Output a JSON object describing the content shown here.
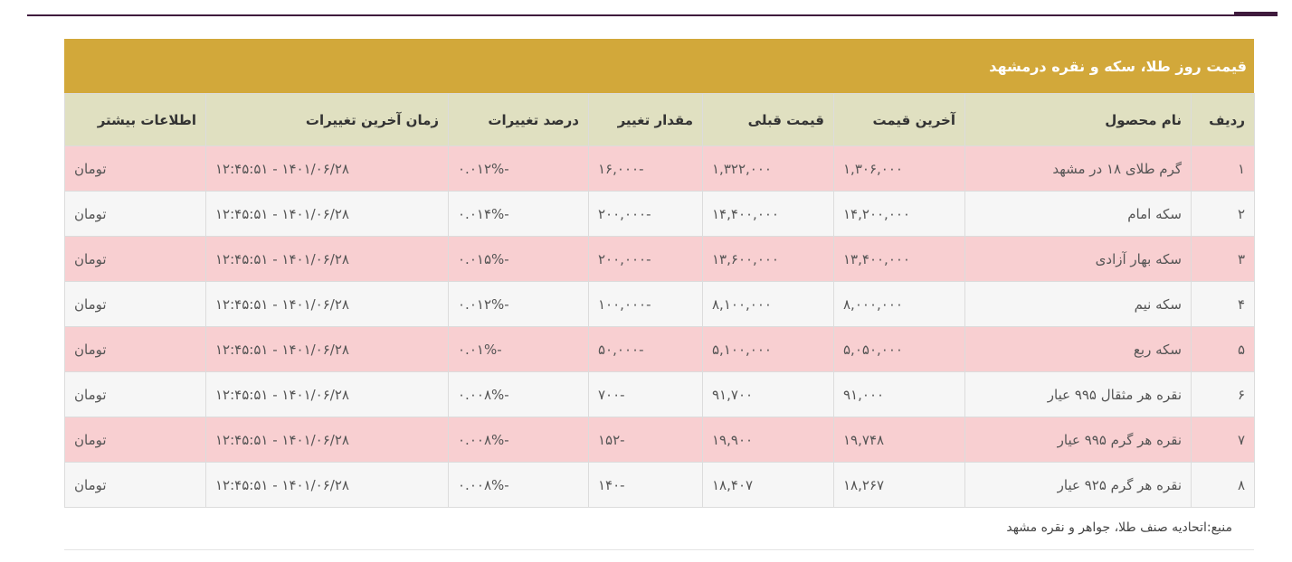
{
  "table": {
    "title": "قیمت روز طلا، سکه و نقره درمشهد",
    "headers": {
      "row": "ردیف",
      "product": "نام محصول",
      "last_price": "آخرین قیمت",
      "prev_price": "قیمت قبلی",
      "change": "مقدار تغییر",
      "change_pct": "درصد تغییرات",
      "last_update": "زمان آخرین تغییرات",
      "more_info": "اطلاعات بیشتر"
    },
    "rows": [
      {
        "idx": "۱",
        "product": "گرم طلای ۱۸ در مشهد",
        "last": "۱,۳۰۶,۰۰۰",
        "prev": "۱,۳۲۲,۰۰۰",
        "change": "-۱۶,۰۰۰",
        "pct": "-۰.۰۱۲%",
        "time": "۱۴۰۱/۰۶/۲۸ - ۱۲:۴۵:۵۱",
        "unit": "تومان"
      },
      {
        "idx": "۲",
        "product": "سکه امام",
        "last": "۱۴,۲۰۰,۰۰۰",
        "prev": "۱۴,۴۰۰,۰۰۰",
        "change": "-۲۰۰,۰۰۰",
        "pct": "-۰.۰۱۴%",
        "time": "۱۴۰۱/۰۶/۲۸ - ۱۲:۴۵:۵۱",
        "unit": "تومان"
      },
      {
        "idx": "۳",
        "product": "سکه بهار آزادی",
        "last": "۱۳,۴۰۰,۰۰۰",
        "prev": "۱۳,۶۰۰,۰۰۰",
        "change": "-۲۰۰,۰۰۰",
        "pct": "-۰.۰۱۵%",
        "time": "۱۴۰۱/۰۶/۲۸ - ۱۲:۴۵:۵۱",
        "unit": "تومان"
      },
      {
        "idx": "۴",
        "product": "سکه نیم",
        "last": "۸,۰۰۰,۰۰۰",
        "prev": "۸,۱۰۰,۰۰۰",
        "change": "-۱۰۰,۰۰۰",
        "pct": "-۰.۰۱۲%",
        "time": "۱۴۰۱/۰۶/۲۸ - ۱۲:۴۵:۵۱",
        "unit": "تومان"
      },
      {
        "idx": "۵",
        "product": "سکه ربع",
        "last": "۵,۰۵۰,۰۰۰",
        "prev": "۵,۱۰۰,۰۰۰",
        "change": "-۵۰,۰۰۰",
        "pct": "-۰.۰۱%",
        "time": "۱۴۰۱/۰۶/۲۸ - ۱۲:۴۵:۵۱",
        "unit": "تومان"
      },
      {
        "idx": "۶",
        "product": "نقره هر مثقال ۹۹۵ عیار",
        "last": "۹۱,۰۰۰",
        "prev": "۹۱,۷۰۰",
        "change": "-۷۰۰",
        "pct": "-۰.۰۰۸%",
        "time": "۱۴۰۱/۰۶/۲۸ - ۱۲:۴۵:۵۱",
        "unit": "تومان"
      },
      {
        "idx": "۷",
        "product": "نقره هر گرم ۹۹۵ عیار",
        "last": "۱۹,۷۴۸",
        "prev": "۱۹,۹۰۰",
        "change": "-۱۵۲",
        "pct": "-۰.۰۰۸%",
        "time": "۱۴۰۱/۰۶/۲۸ - ۱۲:۴۵:۵۱",
        "unit": "تومان"
      },
      {
        "idx": "۸",
        "product": "نقره هر گرم ۹۲۵ عیار",
        "last": "۱۸,۲۶۷",
        "prev": "۱۸,۴۰۷",
        "change": "-۱۴۰",
        "pct": "-۰.۰۰۸%",
        "time": "۱۴۰۱/۰۶/۲۸ - ۱۲:۴۵:۵۱",
        "unit": "تومان"
      }
    ]
  },
  "source": "منبع:اتحادیه صنف طلا، جواهر و نقره مشهد",
  "colors": {
    "title_bg": "#d2a83a",
    "header_bg": "#e0e0c1",
    "row_odd": "#f8cfd1",
    "row_even": "#f6f6f6"
  }
}
